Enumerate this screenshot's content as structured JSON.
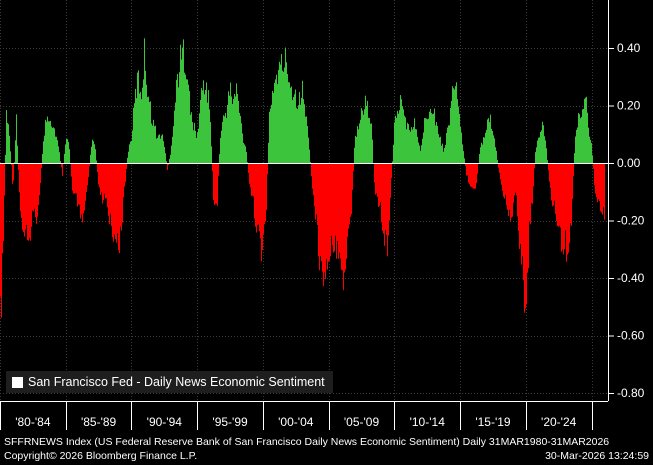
{
  "chart_data": {
    "type": "bar",
    "title": "",
    "xlabel": "",
    "ylabel": "",
    "ylim": [
      -0.82,
      0.56
    ],
    "y_ticks": [
      "0.40",
      "0.20",
      "0.00",
      "-0.20",
      "-0.40",
      "-0.60",
      "-0.80"
    ],
    "y_tick_values": [
      0.4,
      0.2,
      0.0,
      -0.2,
      -0.4,
      -0.6,
      -0.8
    ],
    "x_range": [
      1980.0,
      2026.25
    ],
    "x_categories": [
      "'80-'84",
      "'85-'89",
      "'90-'94",
      "'95-'99",
      "'00-'04",
      "'05-'09",
      "'10-'14",
      "'15-'19",
      "'20-'24"
    ],
    "category_boundaries": [
      1980,
      1985,
      1990,
      1995,
      2000,
      2005,
      2010,
      2015,
      2020,
      2025
    ],
    "grid": true,
    "legend_position": "bottom-left",
    "positive_color": "#3cc43c",
    "negative_color": "#ff0000",
    "series": [
      {
        "name": "San Francisco Fed - Daily News Economic Sentiment",
        "x": [
          1980.0,
          1980.25,
          1980.5,
          1980.75,
          1981.0,
          1981.25,
          1981.5,
          1981.75,
          1982.0,
          1982.25,
          1982.5,
          1982.75,
          1983.0,
          1983.25,
          1983.5,
          1983.75,
          1984.0,
          1984.25,
          1984.5,
          1984.75,
          1985.0,
          1985.25,
          1985.5,
          1985.75,
          1986.0,
          1986.25,
          1986.5,
          1986.75,
          1987.0,
          1987.25,
          1987.5,
          1987.75,
          1988.0,
          1988.25,
          1988.5,
          1988.75,
          1989.0,
          1989.25,
          1989.5,
          1989.75,
          1990.0,
          1990.25,
          1990.5,
          1990.75,
          1991.0,
          1991.25,
          1991.5,
          1991.75,
          1992.0,
          1992.25,
          1992.5,
          1992.75,
          1993.0,
          1993.25,
          1993.5,
          1993.75,
          1994.0,
          1994.25,
          1994.5,
          1994.75,
          1995.0,
          1995.25,
          1995.5,
          1995.75,
          1996.0,
          1996.25,
          1996.5,
          1996.75,
          1997.0,
          1997.25,
          1997.5,
          1997.75,
          1998.0,
          1998.25,
          1998.5,
          1998.75,
          1999.0,
          1999.25,
          1999.5,
          1999.75,
          2000.0,
          2000.25,
          2000.5,
          2000.75,
          2001.0,
          2001.25,
          2001.5,
          2001.75,
          2002.0,
          2002.25,
          2002.5,
          2002.75,
          2003.0,
          2003.25,
          2003.5,
          2003.75,
          2004.0,
          2004.25,
          2004.5,
          2004.75,
          2005.0,
          2005.25,
          2005.5,
          2005.75,
          2006.0,
          2006.25,
          2006.5,
          2006.75,
          2007.0,
          2007.25,
          2007.5,
          2007.75,
          2008.0,
          2008.25,
          2008.5,
          2008.75,
          2009.0,
          2009.25,
          2009.5,
          2009.75,
          2010.0,
          2010.25,
          2010.5,
          2010.75,
          2011.0,
          2011.25,
          2011.5,
          2011.75,
          2012.0,
          2012.25,
          2012.5,
          2012.75,
          2013.0,
          2013.25,
          2013.5,
          2013.75,
          2014.0,
          2014.25,
          2014.5,
          2014.75,
          2015.0,
          2015.25,
          2015.5,
          2015.75,
          2016.0,
          2016.25,
          2016.5,
          2016.75,
          2017.0,
          2017.25,
          2017.5,
          2017.75,
          2018.0,
          2018.25,
          2018.5,
          2018.75,
          2019.0,
          2019.25,
          2019.5,
          2019.75,
          2020.0,
          2020.25,
          2020.5,
          2020.75,
          2021.0,
          2021.25,
          2021.5,
          2021.75,
          2022.0,
          2022.25,
          2022.5,
          2022.75,
          2023.0,
          2023.25,
          2023.5,
          2023.75,
          2024.0,
          2024.25,
          2024.5,
          2024.75,
          2025.0,
          2025.25,
          2025.5,
          2025.75,
          2026.0
        ],
        "values": [
          -0.72,
          -0.35,
          0.22,
          0.1,
          -0.12,
          0.18,
          -0.15,
          -0.28,
          -0.25,
          -0.3,
          -0.2,
          -0.22,
          -0.15,
          0.05,
          0.18,
          0.2,
          0.16,
          0.12,
          0.05,
          -0.05,
          0.1,
          0.08,
          -0.1,
          -0.12,
          -0.2,
          -0.22,
          -0.15,
          -0.05,
          0.1,
          0.06,
          -0.08,
          -0.15,
          -0.12,
          -0.2,
          -0.25,
          -0.3,
          -0.35,
          -0.25,
          -0.1,
          0.05,
          0.1,
          0.25,
          0.35,
          0.28,
          0.45,
          0.3,
          0.2,
          0.15,
          0.1,
          0.12,
          0.08,
          -0.03,
          0.05,
          0.2,
          0.35,
          0.42,
          0.46,
          0.38,
          0.2,
          0.15,
          0.1,
          0.25,
          0.33,
          0.3,
          0.2,
          -0.15,
          -0.21,
          0.1,
          0.18,
          0.22,
          0.3,
          0.25,
          0.3,
          0.2,
          0.1,
          0.05,
          -0.1,
          -0.15,
          -0.25,
          -0.3,
          -0.38,
          -0.2,
          0.2,
          0.3,
          0.35,
          0.38,
          0.4,
          0.42,
          0.35,
          0.3,
          0.28,
          0.25,
          0.3,
          0.2,
          0.1,
          -0.1,
          -0.2,
          -0.35,
          -0.5,
          -0.45,
          -0.38,
          -0.3,
          -0.35,
          -0.4,
          -0.48,
          -0.45,
          -0.3,
          -0.2,
          0.1,
          0.15,
          0.2,
          0.25,
          0.22,
          0.18,
          -0.1,
          -0.15,
          -0.2,
          -0.3,
          -0.33,
          -0.1,
          0.15,
          0.22,
          0.25,
          0.2,
          0.15,
          0.12,
          0.18,
          0.1,
          0.05,
          0.15,
          0.2,
          0.25,
          0.22,
          0.15,
          0.1,
          0.05,
          0.12,
          0.2,
          0.33,
          0.3,
          0.15,
          0.05,
          -0.05,
          -0.1,
          -0.12,
          -0.08,
          0.05,
          0.1,
          0.15,
          0.2,
          0.12,
          0.05,
          -0.05,
          -0.12,
          -0.15,
          -0.2,
          -0.22,
          -0.1,
          -0.3,
          -0.4,
          -0.67,
          -0.3,
          -0.15,
          0.05,
          0.12,
          0.15,
          0.1,
          -0.05,
          -0.15,
          -0.2,
          -0.28,
          -0.35,
          -0.3,
          -0.42,
          -0.2,
          0.1,
          0.18,
          0.2,
          0.3,
          0.16,
          0.08,
          -0.1,
          -0.15,
          -0.2,
          -0.22
        ]
      }
    ]
  },
  "legend": {
    "label": "San Francisco Fed - Daily News Economic Sentiment"
  },
  "footer": {
    "description": "SFFRNEWS Index (US Federal Reserve Bank of San Francisco Daily News Economic Sentiment) Daily 31MAR1980-31MAR2026",
    "copyright": "Copyright© 2026 Bloomberg Finance L.P.",
    "timestamp": "30-Mar-2026 13:24:59"
  }
}
